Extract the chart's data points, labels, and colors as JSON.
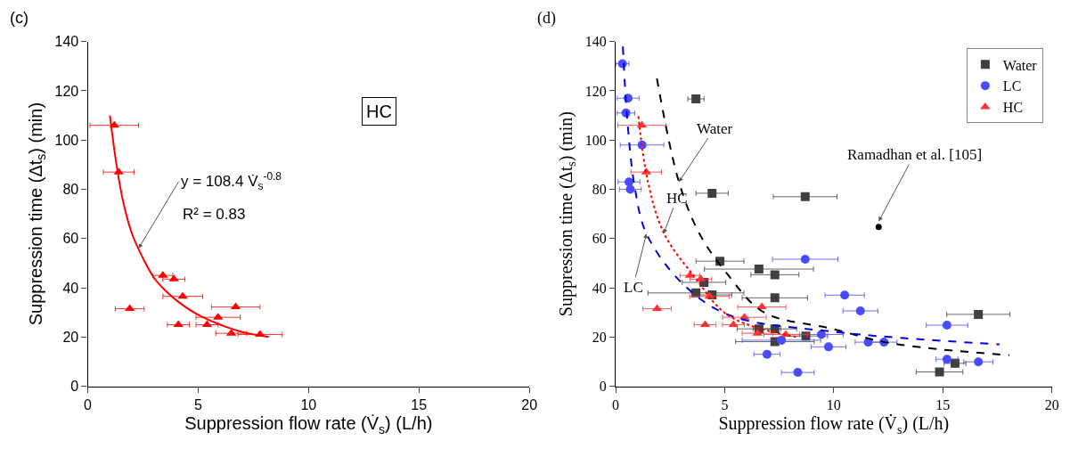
{
  "chart_data": [
    {
      "type": "scatter",
      "title": "(c)",
      "xlabel": "Suppression flow rate (V̇$_{s}$) (L/h)",
      "ylabel": "Suppression time (Δt$_{s}$) (min)",
      "xlim": [
        0,
        20
      ],
      "xticks": [
        0,
        5,
        10,
        15,
        20
      ],
      "ylim": [
        0,
        140
      ],
      "yticks": [
        0,
        20,
        40,
        60,
        80,
        100,
        120,
        140
      ],
      "legend": false,
      "annotations": [
        "HC",
        {
          "text": "y = 108.4 V̇$_{s}$$^{-0.8}$",
          "x": 2.3,
          "y": 56
        },
        "R² = 0.83"
      ],
      "series": [
        {
          "type": "scatter",
          "color": "#ff0000",
          "marker": "triangle",
          "x": [
            1.2,
            1.4,
            3.4,
            3.9,
            4.3,
            1.9,
            6.7,
            5.9,
            4.1,
            5.4,
            6.5,
            7.8
          ],
          "values": [
            106,
            87,
            45,
            43.5,
            36.5,
            31.5,
            32.2,
            28,
            25,
            25,
            21.5,
            21
          ],
          "xerrors": [
            1.1,
            0.7,
            0.45,
            0.5,
            0.9,
            0.65,
            1.1,
            1.0,
            0.5,
            0.5,
            0.7,
            1.0
          ]
        },
        {
          "type": "line",
          "color": "#ff0000",
          "line_style": "solid",
          "marker": "none",
          "x": [
            1.0,
            1.3,
            1.6,
            2,
            2.5,
            3,
            3.5,
            4,
            5,
            6,
            7,
            8.2
          ],
          "values": [
            110,
            90,
            75,
            62,
            52,
            44,
            39,
            35,
            29,
            25,
            22,
            20
          ]
        }
      ]
    },
    {
      "type": "scatter",
      "title": "(d)",
      "xlabel": "Suppression flow rate (V̇$_{s}$) (L/h)",
      "ylabel": "Suppression time (Δt$_{s}$) (min)",
      "xlim": [
        0,
        20
      ],
      "xticks": [
        0,
        5,
        10,
        15,
        20
      ],
      "ylim": [
        0,
        140
      ],
      "yticks": [
        0,
        20,
        40,
        60,
        80,
        100,
        120,
        140
      ],
      "legend": "top right",
      "annotations": [
        {
          "text": "Water",
          "x": 2.9,
          "y": 83
        },
        {
          "text": "HC",
          "x": 2.2,
          "y": 62
        },
        {
          "text": "LC",
          "x": 1.41,
          "y": 62
        },
        {
          "text": "Ramadhan et al. [105]",
          "x": 12.06,
          "y": 67
        }
      ],
      "series": [
        {
          "name": "Water",
          "type": "scatter",
          "color": "#404040",
          "marker": "square",
          "x": [
            3.68,
            4.42,
            8.69,
            4.78,
            6.57,
            7.3,
            4.05,
            3.68,
            4.42,
            7.3,
            6.57,
            7.3,
            7.3,
            8.72,
            16.63,
            15.56,
            14.85
          ],
          "values": [
            116.7,
            78.4,
            77,
            50.8,
            47.6,
            45.3,
            42.2,
            37.9,
            37.1,
            35.9,
            23.3,
            23.3,
            18.1,
            20.4,
            29.2,
            9.3,
            5.8
          ],
          "xerrors": [
            0.37,
            0.74,
            1.46,
            1.1,
            2.5,
            1.1,
            1.0,
            2.2,
            0.9,
            1.5,
            1.0,
            1.0,
            1.8,
            1.0,
            1.45,
            0.5,
            1.07
          ]
        },
        {
          "name": "LC",
          "type": "scatter",
          "color": "#4a4aff",
          "marker": "circle",
          "x": [
            0.31,
            0.57,
            0.47,
            1.21,
            0.61,
            0.67,
            8.69,
            9.43,
            7.6,
            6.94,
            8.35,
            9.76,
            10.5,
            11.22,
            11.58,
            12.3,
            15.19,
            15.19,
            16.63
          ],
          "values": [
            131,
            117,
            111,
            98,
            83,
            80,
            51.6,
            21,
            18.7,
            13,
            5.6,
            16,
            37,
            30.6,
            17.9,
            17.9,
            24.8,
            11,
            9.9
          ],
          "xerrors": [
            0.3,
            0.5,
            0.4,
            1.0,
            0.5,
            0.5,
            1.5,
            1.0,
            1.8,
            0.6,
            0.75,
            0.8,
            0.9,
            0.8,
            0.6,
            0.6,
            0.95,
            0.5,
            0.67
          ]
        },
        {
          "name": "HC",
          "type": "scatter",
          "color": "#ff3333",
          "marker": "triangle",
          "x": [
            1.2,
            1.4,
            3.4,
            3.9,
            4.3,
            1.9,
            6.7,
            5.9,
            4.1,
            5.4,
            6.5,
            7.8
          ],
          "values": [
            106,
            87,
            45,
            43.5,
            36.5,
            31.5,
            32.2,
            28,
            25,
            25,
            21.5,
            21
          ],
          "xerrors": [
            1.1,
            0.7,
            0.45,
            0.5,
            0.9,
            0.65,
            1.1,
            1.0,
            0.5,
            0.5,
            0.7,
            1.0
          ]
        },
        {
          "type": "scatter",
          "color": "#000000",
          "marker": "circle",
          "x": [
            12.06
          ],
          "values": [
            64.7
          ]
        },
        {
          "type": "line",
          "color": "#000000",
          "line_style": "dashed",
          "marker": "none",
          "x": [
            1.89,
            2.9,
            3.84,
            5.17,
            6.8,
            9.9,
            12.6,
            18.05
          ],
          "values": [
            125,
            83,
            62,
            45,
            30,
            23.4,
            17.5,
            12.6
          ]
        },
        {
          "type": "line",
          "color": "#0000dd",
          "line_style": "dashed",
          "marker": "none",
          "x": [
            0.33,
            0.53,
            0.88,
            1.41,
            3.03,
            5.17,
            9.9,
            17.6
          ],
          "values": [
            138,
            108.5,
            80.5,
            62,
            42,
            29,
            22.2,
            17
          ]
        },
        {
          "type": "line",
          "color": "#ff0000",
          "line_style": "dotted",
          "marker": "none",
          "x": [
            1.04,
            1.48,
            2.22,
            3.57,
            5.19,
            8.3
          ],
          "values": [
            109.7,
            83,
            62,
            45,
            28.6,
            20
          ]
        }
      ]
    }
  ]
}
